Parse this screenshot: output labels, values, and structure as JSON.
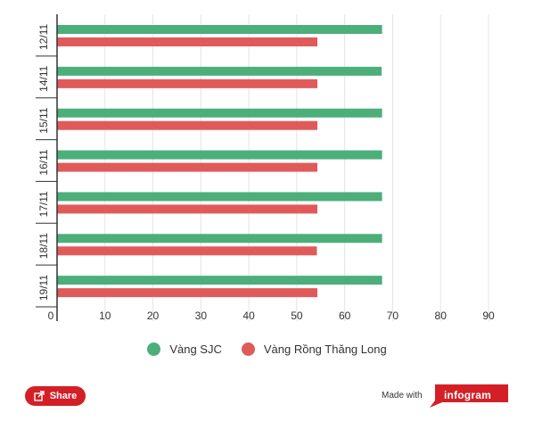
{
  "chart_data": {
    "type": "bar",
    "orientation": "horizontal",
    "categories": [
      "12/11",
      "14/11",
      "15/11",
      "16/11",
      "17/11",
      "18/11",
      "19/11"
    ],
    "series": [
      {
        "name": "Vàng SJC",
        "color": "#4caf7a",
        "values": [
          67.8,
          67.7,
          67.8,
          67.8,
          67.8,
          67.8,
          67.8
        ]
      },
      {
        "name": "Vàng Rồng Thăng Long",
        "color": "#e05a5a",
        "values": [
          54.3,
          54.3,
          54.3,
          54.3,
          54.3,
          54.2,
          54.3
        ]
      }
    ],
    "x_ticks": [
      0,
      10,
      20,
      30,
      40,
      50,
      60,
      70,
      80,
      90
    ],
    "xlim": [
      0,
      90
    ],
    "grid": true,
    "legend_position": "bottom"
  },
  "footer": {
    "share_label": "Share",
    "made_with_label": "Made with",
    "brand_label": "infogram"
  },
  "icons": {
    "share": "share-icon"
  }
}
